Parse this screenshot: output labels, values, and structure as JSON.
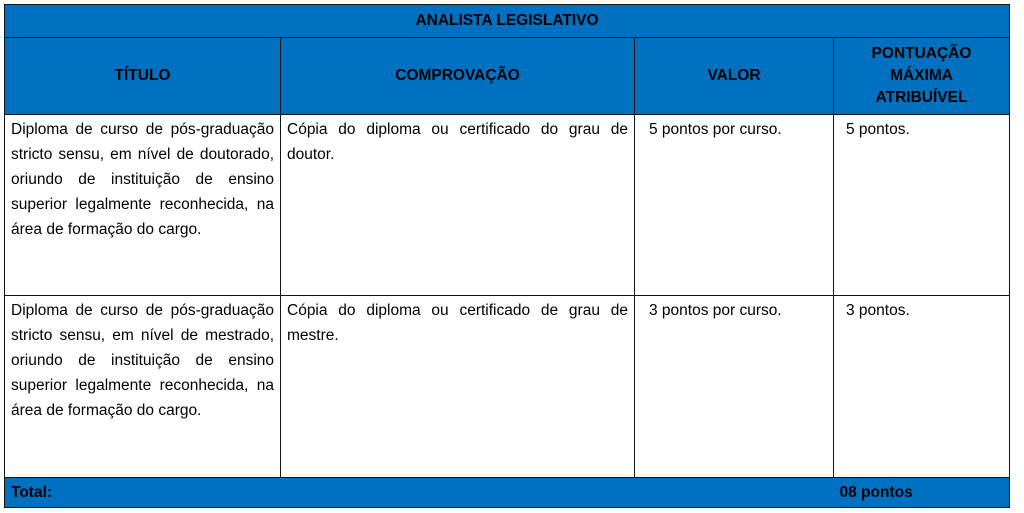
{
  "title": "ANALISTA LEGISLATIVO",
  "colors": {
    "header_bg": "#0070C0",
    "border": "#111111"
  },
  "columns": [
    "TÍTULO",
    "COMPROVAÇÃO",
    "VALOR",
    "PONTUAÇÃO MÁXIMA ATRIBUÍVEL"
  ],
  "rows": [
    {
      "titulo": "Diploma de curso de pós-graduação stricto sensu, em nível de doutorado, oriundo de instituição de ensino superior legalmente reconhecida, na área de formação do cargo.",
      "comprovacao": "Cópia do diploma ou certificado do grau de doutor.",
      "valor": "5 pontos por curso.",
      "pontuacao": "5 pontos."
    },
    {
      "titulo": "Diploma de curso de pós-graduação stricto sensu, em nível de mestrado, oriundo de instituição de ensino superior legalmente reconhecida, na área de formação do cargo.",
      "comprovacao": "Cópia do diploma ou certificado de grau de mestre.",
      "valor": "3 pontos por curso.",
      "pontuacao": "3 pontos."
    }
  ],
  "total": {
    "label": "Total:",
    "value": "08 pontos"
  }
}
